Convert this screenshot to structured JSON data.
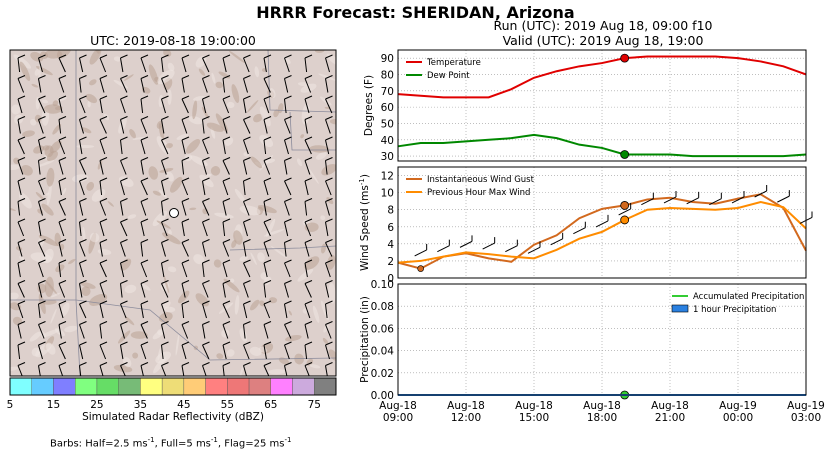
{
  "title": "HRRR Forecast: SHERIDAN, Arizona",
  "map": {
    "title": "UTC: 2019-08-18 19:00:00",
    "colorbar_label": "Simulated Radar Reflectivity (dBZ)",
    "colorbar_ticks": [
      "5",
      "15",
      "25",
      "35",
      "45",
      "55",
      "65",
      "75"
    ],
    "colorbar_colors": [
      "#7fffff",
      "#66ccff",
      "#7f7fff",
      "#80ff80",
      "#66dd66",
      "#77bb77",
      "#ffff80",
      "#eedd77",
      "#ffcc77",
      "#ff8080",
      "#ee7777",
      "#dd8080",
      "#ff80ff",
      "#ccaadd",
      "#808080"
    ],
    "barb_note_plain": "Barbs: Half=2.5 ms",
    "barb_note_sup": "-1",
    "barb_note_full": ", Full=5 ms",
    "barb_note_flag": ", Flag=25 ms"
  },
  "run_line": "Run (UTC): 2019 Aug 18, 09:00 f10",
  "valid_line": "Valid (UTC): 2019 Aug 18, 19:00",
  "colors": {
    "temperature": "#e00000",
    "dewpoint": "#008800",
    "gust": "#d2691e",
    "maxwind": "#ff8c00",
    "accum": "#33cc33",
    "hourly": "#2a80e0"
  },
  "chart_data": [
    {
      "type": "line",
      "ylabel": "Degrees (F)",
      "ylim": [
        27,
        95
      ],
      "yticks": [
        30,
        40,
        50,
        60,
        70,
        80,
        90
      ],
      "x": [
        "Aug-18 09:00",
        "Aug-18 10:00",
        "Aug-18 11:00",
        "Aug-18 12:00",
        "Aug-18 13:00",
        "Aug-18 14:00",
        "Aug-18 15:00",
        "Aug-18 16:00",
        "Aug-18 17:00",
        "Aug-18 18:00",
        "Aug-18 19:00",
        "Aug-18 20:00",
        "Aug-18 21:00",
        "Aug-18 22:00",
        "Aug-18 23:00",
        "Aug-19 00:00",
        "Aug-19 01:00",
        "Aug-19 02:00",
        "Aug-19 03:00"
      ],
      "series": [
        {
          "name": "Temperature",
          "values": [
            68,
            67,
            66,
            66,
            66,
            71,
            78,
            82,
            85,
            87,
            90,
            91,
            91,
            91,
            91,
            90,
            88,
            85,
            80
          ]
        },
        {
          "name": "Dew Point",
          "values": [
            36,
            38,
            38,
            39,
            40,
            41,
            43,
            41,
            37,
            35,
            31,
            31,
            31,
            30,
            30,
            30,
            30,
            30,
            31
          ]
        }
      ],
      "marker_index": 10,
      "legend": "top-left",
      "grid": true
    },
    {
      "type": "line",
      "ylabel": "Wind Speed (ms",
      "ylabel_sup": "-1",
      "ylabel_end": ")",
      "ylim": [
        0,
        13
      ],
      "yticks": [
        0,
        2,
        4,
        6,
        8,
        10,
        12
      ],
      "series": [
        {
          "name": "Instantaneous Wind Gust",
          "values": [
            1.8,
            1.1,
            2.5,
            2.9,
            2.3,
            1.9,
            3.9,
            5.0,
            7.0,
            8.1,
            8.5,
            9.2,
            9.4,
            8.9,
            8.7,
            9.3,
            9.8,
            8.2,
            3.2
          ]
        },
        {
          "name": "Previous Hour Max Wind",
          "values": [
            1.8,
            2.0,
            2.5,
            3.0,
            2.8,
            2.5,
            2.3,
            3.3,
            4.6,
            5.4,
            6.8,
            8.0,
            8.2,
            8.1,
            8.0,
            8.2,
            8.9,
            8.3,
            5.8
          ]
        }
      ],
      "marker_index": 10,
      "legend": "top-left",
      "grid": true
    },
    {
      "type": "line",
      "ylabel": "Precipitation (in)",
      "ylim": [
        0,
        0.1
      ],
      "yticks": [
        "0.00",
        "0.02",
        "0.04",
        "0.06",
        "0.08",
        "0.10"
      ],
      "xtick_labels": [
        [
          "Aug-18",
          "09:00"
        ],
        [
          "Aug-18",
          "12:00"
        ],
        [
          "Aug-18",
          "15:00"
        ],
        [
          "Aug-18",
          "18:00"
        ],
        [
          "Aug-18",
          "21:00"
        ],
        [
          "Aug-19",
          "00:00"
        ],
        [
          "Aug-19",
          "03:00"
        ]
      ],
      "series": [
        {
          "name": "Accumulated Precipitation",
          "values": [
            0,
            0,
            0,
            0,
            0,
            0,
            0,
            0,
            0,
            0,
            0,
            0,
            0,
            0,
            0,
            0,
            0,
            0,
            0
          ]
        },
        {
          "name": "1 hour Precipitation",
          "values": [
            0,
            0,
            0,
            0,
            0,
            0,
            0,
            0,
            0,
            0,
            0,
            0,
            0,
            0,
            0,
            0,
            0,
            0,
            0
          ]
        }
      ],
      "marker_index": 10,
      "legend": "top-right",
      "grid": true
    }
  ]
}
